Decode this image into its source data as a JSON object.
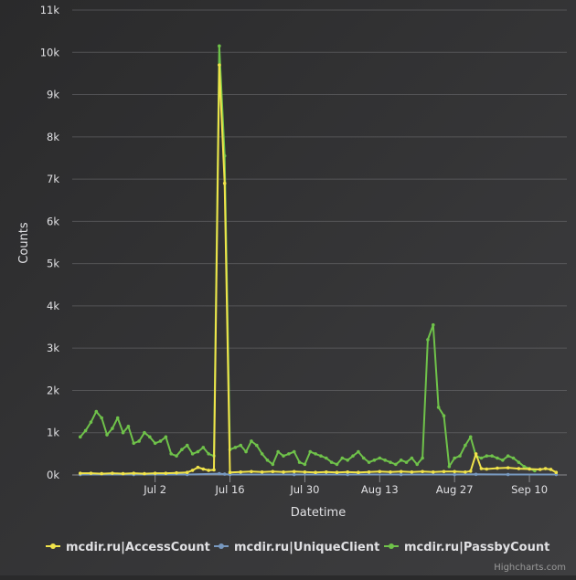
{
  "chart_data": {
    "type": "line",
    "title": "",
    "xlabel": "Datetime",
    "ylabel": "Counts",
    "x_ticks": [
      "Jul 2",
      "Jul 16",
      "Jul 30",
      "Aug 13",
      "Aug 27",
      "Sep 10"
    ],
    "x_tick_days": [
      14,
      28,
      42,
      56,
      70,
      84
    ],
    "x_range_days": [
      -1.5,
      91
    ],
    "ylim": [
      0,
      11000
    ],
    "y_ticks": [
      0,
      1000,
      2000,
      3000,
      4000,
      5000,
      6000,
      7000,
      8000,
      9000,
      10000,
      11000
    ],
    "y_tick_labels": [
      "0k",
      "1k",
      "2k",
      "3k",
      "4k",
      "5k",
      "6k",
      "7k",
      "8k",
      "9k",
      "10k",
      "11k"
    ],
    "grid": true,
    "legend_position": "bottom",
    "series": [
      {
        "name": "mcdir.ru|AccessCount",
        "color": "#f0e34a",
        "points": [
          [
            0,
            40
          ],
          [
            2,
            40
          ],
          [
            4,
            30
          ],
          [
            6,
            40
          ],
          [
            8,
            30
          ],
          [
            10,
            40
          ],
          [
            12,
            30
          ],
          [
            14,
            40
          ],
          [
            16,
            40
          ],
          [
            18,
            50
          ],
          [
            20,
            60
          ],
          [
            21,
            110
          ],
          [
            22,
            180
          ],
          [
            23,
            140
          ],
          [
            24,
            110
          ],
          [
            25,
            120
          ],
          [
            26,
            9700
          ],
          [
            27,
            6900
          ],
          [
            28,
            60
          ],
          [
            30,
            70
          ],
          [
            32,
            80
          ],
          [
            34,
            70
          ],
          [
            36,
            80
          ],
          [
            38,
            70
          ],
          [
            40,
            80
          ],
          [
            42,
            70
          ],
          [
            44,
            60
          ],
          [
            46,
            70
          ],
          [
            48,
            60
          ],
          [
            50,
            70
          ],
          [
            52,
            60
          ],
          [
            54,
            70
          ],
          [
            56,
            80
          ],
          [
            58,
            70
          ],
          [
            60,
            80
          ],
          [
            62,
            70
          ],
          [
            64,
            80
          ],
          [
            66,
            70
          ],
          [
            68,
            80
          ],
          [
            70,
            80
          ],
          [
            72,
            70
          ],
          [
            73,
            90
          ],
          [
            74,
            500
          ],
          [
            75,
            150
          ],
          [
            76,
            140
          ],
          [
            78,
            160
          ],
          [
            80,
            170
          ],
          [
            82,
            150
          ],
          [
            84,
            140
          ],
          [
            86,
            130
          ],
          [
            87,
            150
          ],
          [
            88,
            130
          ],
          [
            89,
            60
          ]
        ]
      },
      {
        "name": "mcdir.ru|UniqueClient",
        "color": "#7798bf",
        "points": [
          [
            0,
            10
          ],
          [
            10,
            10
          ],
          [
            20,
            10
          ],
          [
            26,
            30
          ],
          [
            27,
            20
          ],
          [
            28,
            10
          ],
          [
            40,
            10
          ],
          [
            50,
            10
          ],
          [
            60,
            10
          ],
          [
            70,
            10
          ],
          [
            74,
            15
          ],
          [
            80,
            10
          ],
          [
            89,
            10
          ]
        ]
      },
      {
        "name": "mcdir.ru|PassbyCount",
        "color": "#6fc24a",
        "points": [
          [
            0,
            900
          ],
          [
            1,
            1050
          ],
          [
            2,
            1250
          ],
          [
            3,
            1500
          ],
          [
            4,
            1350
          ],
          [
            5,
            950
          ],
          [
            6,
            1100
          ],
          [
            7,
            1350
          ],
          [
            8,
            1000
          ],
          [
            9,
            1150
          ],
          [
            10,
            750
          ],
          [
            11,
            800
          ],
          [
            12,
            1000
          ],
          [
            13,
            900
          ],
          [
            14,
            750
          ],
          [
            15,
            800
          ],
          [
            16,
            900
          ],
          [
            17,
            500
          ],
          [
            18,
            450
          ],
          [
            19,
            600
          ],
          [
            20,
            700
          ],
          [
            21,
            500
          ],
          [
            22,
            550
          ],
          [
            23,
            650
          ],
          [
            24,
            500
          ],
          [
            25,
            450
          ],
          [
            26,
            10150
          ],
          [
            27,
            7550
          ],
          [
            28,
            600
          ],
          [
            29,
            650
          ],
          [
            30,
            700
          ],
          [
            31,
            550
          ],
          [
            32,
            800
          ],
          [
            33,
            700
          ],
          [
            34,
            500
          ],
          [
            35,
            350
          ],
          [
            36,
            250
          ],
          [
            37,
            550
          ],
          [
            38,
            450
          ],
          [
            39,
            500
          ],
          [
            40,
            550
          ],
          [
            41,
            300
          ],
          [
            42,
            250
          ],
          [
            43,
            550
          ],
          [
            44,
            500
          ],
          [
            45,
            450
          ],
          [
            46,
            400
          ],
          [
            47,
            300
          ],
          [
            48,
            250
          ],
          [
            49,
            400
          ],
          [
            50,
            350
          ],
          [
            51,
            450
          ],
          [
            52,
            550
          ],
          [
            53,
            400
          ],
          [
            54,
            300
          ],
          [
            55,
            350
          ],
          [
            56,
            400
          ],
          [
            57,
            350
          ],
          [
            58,
            300
          ],
          [
            59,
            250
          ],
          [
            60,
            350
          ],
          [
            61,
            300
          ],
          [
            62,
            400
          ],
          [
            63,
            250
          ],
          [
            64,
            400
          ],
          [
            65,
            3200
          ],
          [
            66,
            3550
          ],
          [
            67,
            1600
          ],
          [
            68,
            1400
          ],
          [
            69,
            200
          ],
          [
            70,
            400
          ],
          [
            71,
            450
          ],
          [
            72,
            700
          ],
          [
            73,
            900
          ],
          [
            74,
            450
          ],
          [
            75,
            400
          ],
          [
            76,
            450
          ],
          [
            77,
            450
          ],
          [
            78,
            400
          ],
          [
            79,
            350
          ],
          [
            80,
            450
          ],
          [
            81,
            400
          ],
          [
            82,
            300
          ],
          [
            83,
            200
          ],
          [
            84,
            150
          ],
          [
            85,
            100
          ]
        ]
      }
    ]
  },
  "credits": "Highcharts.com"
}
